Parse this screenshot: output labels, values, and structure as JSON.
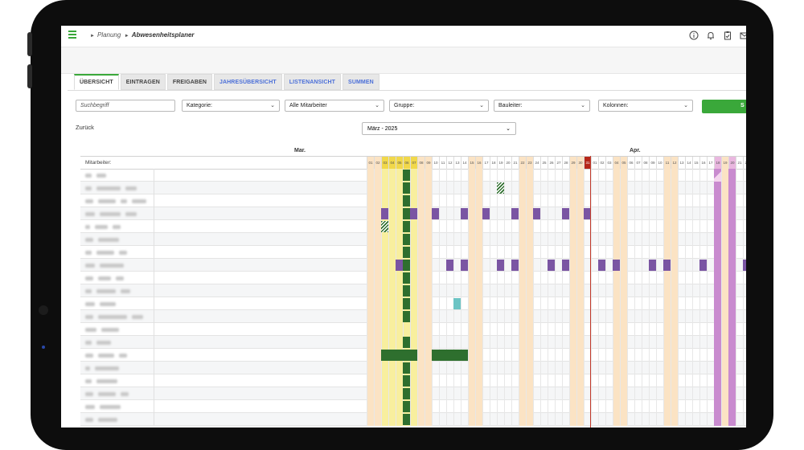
{
  "breadcrumb": [
    "Planung",
    "Abwesenheitsplaner"
  ],
  "header_icons": [
    "info-icon",
    "bell-icon",
    "clipboard-check-icon",
    "mail-icon"
  ],
  "tabs": [
    {
      "label": "ÜBERSICHT",
      "active": true,
      "blue": false
    },
    {
      "label": "EINTRAGEN",
      "active": false,
      "blue": false
    },
    {
      "label": "FREIGABEN",
      "active": false,
      "blue": false
    },
    {
      "label": "JAHRESÜBERSICHT",
      "active": false,
      "blue": true
    },
    {
      "label": "LISTENANSICHT",
      "active": false,
      "blue": true
    },
    {
      "label": "SUMMEN",
      "active": false,
      "blue": true
    }
  ],
  "filters": {
    "search_placeholder": "Suchbegriff",
    "kategorie": "Kategorie:",
    "mitarbeiter": "Alle Mitarbeiter",
    "gruppe": "Gruppe:",
    "bauleiter": "Bauleiter:",
    "kolonnen": "Kolonnen:",
    "button_label": "S"
  },
  "back_label": "Zurück",
  "month_select": "März - 2025",
  "grid": {
    "employee_header": "Mitarbeiter:",
    "month_labels": [
      "Mar.",
      "Apr."
    ],
    "days": [
      "01",
      "02",
      "03",
      "04",
      "05",
      "06",
      "07",
      "08",
      "09",
      "10",
      "11",
      "12",
      "13",
      "14",
      "15",
      "16",
      "17",
      "18",
      "19",
      "20",
      "21",
      "22",
      "23",
      "24",
      "25",
      "26",
      "27",
      "28",
      "29",
      "30",
      "31",
      "01",
      "02",
      "03",
      "04",
      "05",
      "06",
      "07",
      "08",
      "09",
      "10",
      "11",
      "12",
      "13",
      "14",
      "15",
      "16",
      "17",
      "18",
      "19",
      "20",
      "21",
      "22",
      "2"
    ],
    "weekend_idx": [
      0,
      1,
      7,
      8,
      14,
      15,
      21,
      22,
      28,
      29,
      34,
      35,
      41,
      42,
      48,
      49
    ],
    "holiday_idx": [
      2,
      3,
      4,
      5,
      6
    ],
    "pink_idx": [
      48,
      50
    ],
    "today_idx": 30,
    "colors": {
      "weekend": "#fbe3c4",
      "holiday": "#f8ef9e",
      "holiday_header": "#f1d84a",
      "pink": "#e9b7df",
      "today_header": "#b52619",
      "green": "#2e6f2e",
      "purple": "#7a55a3",
      "teal": "#6cc4c4",
      "magenta": "#c98bcf"
    },
    "rows": [
      {
        "marks": [
          [
            5,
            "green"
          ]
        ]
      },
      {
        "marks": [
          [
            18,
            "hatch"
          ],
          [
            5,
            "green"
          ]
        ]
      },
      {
        "marks": [
          [
            5,
            "green"
          ]
        ]
      },
      {
        "marks": [
          [
            2,
            "purple"
          ],
          [
            5,
            "green"
          ],
          [
            6,
            "purple"
          ],
          [
            9,
            "purple"
          ],
          [
            13,
            "purple"
          ],
          [
            16,
            "purple"
          ],
          [
            20,
            "purple"
          ],
          [
            23,
            "purple"
          ],
          [
            27,
            "purple"
          ],
          [
            30,
            "purple"
          ]
        ]
      },
      {
        "marks": [
          [
            2,
            "hatch"
          ],
          [
            5,
            "green"
          ]
        ]
      },
      {
        "marks": [
          [
            5,
            "green"
          ]
        ]
      },
      {
        "marks": [
          [
            5,
            "green"
          ]
        ]
      },
      {
        "marks": [
          [
            4,
            "purple"
          ],
          [
            5,
            "green"
          ],
          [
            11,
            "purple"
          ],
          [
            13,
            "purple"
          ],
          [
            18,
            "purple"
          ],
          [
            20,
            "purple"
          ],
          [
            25,
            "purple"
          ],
          [
            27,
            "purple"
          ],
          [
            32,
            "purple"
          ],
          [
            34,
            "purple"
          ],
          [
            39,
            "purple"
          ],
          [
            41,
            "purple"
          ],
          [
            46,
            "purple"
          ],
          [
            48,
            "purple"
          ],
          [
            52,
            "purple"
          ]
        ]
      },
      {
        "marks": [
          [
            5,
            "green"
          ]
        ]
      },
      {
        "marks": [
          [
            5,
            "green"
          ]
        ]
      },
      {
        "marks": [
          [
            5,
            "green"
          ],
          [
            12,
            "teal"
          ]
        ]
      },
      {
        "marks": [
          [
            5,
            "green"
          ]
        ]
      },
      {
        "marks": []
      },
      {
        "marks": [
          [
            5,
            "green"
          ]
        ]
      },
      {
        "marks": [
          [
            2,
            "green"
          ],
          [
            3,
            "green"
          ],
          [
            4,
            "green"
          ],
          [
            5,
            "green"
          ],
          [
            6,
            "green"
          ],
          [
            9,
            "green"
          ],
          [
            10,
            "green"
          ],
          [
            11,
            "green"
          ],
          [
            12,
            "green"
          ],
          [
            13,
            "green"
          ]
        ]
      },
      {
        "marks": [
          [
            5,
            "green"
          ]
        ]
      },
      {
        "marks": [
          [
            5,
            "green"
          ]
        ]
      },
      {
        "marks": [
          [
            5,
            "green"
          ]
        ]
      },
      {
        "marks": [
          [
            5,
            "green"
          ]
        ]
      },
      {
        "marks": [
          [
            5,
            "green"
          ]
        ]
      }
    ]
  }
}
